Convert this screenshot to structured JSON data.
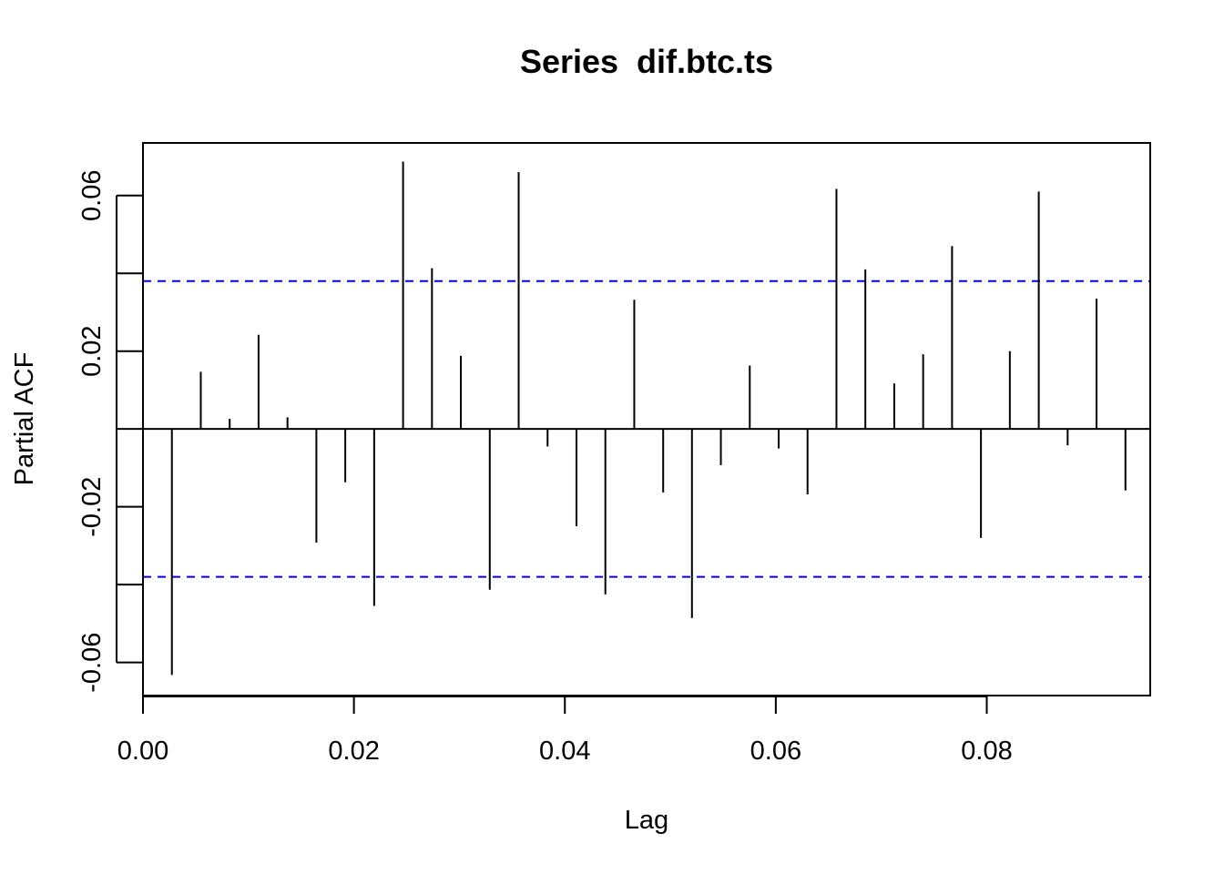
{
  "chart_data": {
    "type": "bar",
    "title": "Series  dif.btc.ts",
    "xlabel": "Lag",
    "ylabel": "Partial ACF",
    "xlim": [
      0.0,
      0.0955
    ],
    "ylim": [
      -0.0685,
      0.0735
    ],
    "x_ticks": [
      0.0,
      0.02,
      0.04,
      0.06,
      0.08
    ],
    "x_tick_labels": [
      "0.00",
      "0.02",
      "0.04",
      "0.06",
      "0.08"
    ],
    "y_ticks": [
      -0.06,
      -0.04,
      -0.02,
      0.0,
      0.02,
      0.04,
      0.06
    ],
    "y_tick_labels": [
      "-0.06",
      "",
      "-0.02",
      "",
      "0.02",
      "",
      "0.06"
    ],
    "confidence_limit": 0.038,
    "confidence_color": "#0000ff",
    "spike_color": "#000000",
    "x": [
      0.00274,
      0.00548,
      0.00822,
      0.01096,
      0.0137,
      0.01644,
      0.01918,
      0.02192,
      0.02466,
      0.0274,
      0.03014,
      0.03288,
      0.03562,
      0.03836,
      0.0411,
      0.04384,
      0.04658,
      0.04932,
      0.05205,
      0.05479,
      0.05753,
      0.06027,
      0.06301,
      0.06575,
      0.06849,
      0.07123,
      0.07397,
      0.07671,
      0.07945,
      0.08219,
      0.08493,
      0.08767,
      0.09041,
      0.09315
    ],
    "values": [
      -0.0632,
      0.0147,
      0.0026,
      0.0242,
      0.003,
      -0.0292,
      -0.0137,
      -0.0455,
      0.0687,
      0.0413,
      0.0188,
      -0.0413,
      0.066,
      -0.0045,
      -0.025,
      -0.0425,
      0.0332,
      -0.0163,
      -0.0486,
      -0.0093,
      0.0163,
      -0.005,
      -0.0168,
      0.0617,
      0.041,
      0.0117,
      0.0192,
      0.047,
      -0.028,
      0.02,
      0.061,
      -0.0042,
      0.0335,
      -0.0158
    ]
  }
}
